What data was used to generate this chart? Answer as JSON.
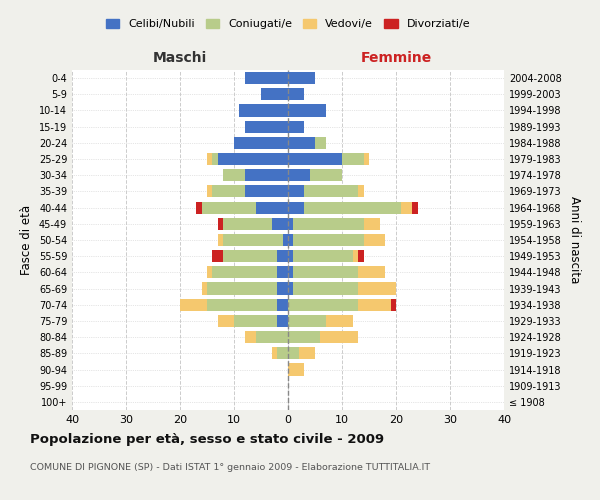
{
  "age_groups": [
    "100+",
    "95-99",
    "90-94",
    "85-89",
    "80-84",
    "75-79",
    "70-74",
    "65-69",
    "60-64",
    "55-59",
    "50-54",
    "45-49",
    "40-44",
    "35-39",
    "30-34",
    "25-29",
    "20-24",
    "15-19",
    "10-14",
    "5-9",
    "0-4"
  ],
  "birth_years": [
    "≤ 1908",
    "1909-1913",
    "1914-1918",
    "1919-1923",
    "1924-1928",
    "1929-1933",
    "1934-1938",
    "1939-1943",
    "1944-1948",
    "1949-1953",
    "1954-1958",
    "1959-1963",
    "1964-1968",
    "1969-1973",
    "1974-1978",
    "1979-1983",
    "1984-1988",
    "1989-1993",
    "1994-1998",
    "1999-2003",
    "2004-2008"
  ],
  "maschi": {
    "celibi": [
      0,
      0,
      0,
      0,
      0,
      2,
      2,
      2,
      2,
      2,
      1,
      3,
      6,
      8,
      8,
      13,
      10,
      8,
      9,
      5,
      8
    ],
    "coniugati": [
      0,
      0,
      0,
      2,
      6,
      8,
      13,
      13,
      12,
      10,
      11,
      9,
      10,
      6,
      4,
      1,
      0,
      0,
      0,
      0,
      0
    ],
    "vedovi": [
      0,
      0,
      0,
      1,
      2,
      3,
      5,
      1,
      1,
      0,
      1,
      0,
      0,
      1,
      0,
      1,
      0,
      0,
      0,
      0,
      0
    ],
    "divorziati": [
      0,
      0,
      0,
      0,
      0,
      0,
      0,
      0,
      0,
      2,
      0,
      1,
      1,
      0,
      0,
      0,
      0,
      0,
      0,
      0,
      0
    ]
  },
  "femmine": {
    "nubili": [
      0,
      0,
      0,
      0,
      0,
      0,
      0,
      1,
      1,
      1,
      1,
      1,
      3,
      3,
      4,
      10,
      5,
      3,
      7,
      3,
      5
    ],
    "coniugate": [
      0,
      0,
      0,
      2,
      6,
      7,
      13,
      12,
      12,
      11,
      13,
      13,
      18,
      10,
      6,
      4,
      2,
      0,
      0,
      0,
      0
    ],
    "vedove": [
      0,
      0,
      3,
      3,
      7,
      5,
      6,
      7,
      5,
      1,
      4,
      3,
      2,
      1,
      0,
      1,
      0,
      0,
      0,
      0,
      0
    ],
    "divorziate": [
      0,
      0,
      0,
      0,
      0,
      0,
      1,
      0,
      0,
      1,
      0,
      0,
      1,
      0,
      0,
      0,
      0,
      0,
      0,
      0,
      0
    ]
  },
  "colors": {
    "celibi_nubili": "#4472C4",
    "coniugati": "#B8CC8A",
    "vedovi": "#F5C86E",
    "divorziati": "#CC2222"
  },
  "title": "Popolazione per età, sesso e stato civile - 2009",
  "subtitle": "COMUNE DI PIGNONE (SP) - Dati ISTAT 1° gennaio 2009 - Elaborazione TUTTITALIA.IT",
  "xlabel_left": "Maschi",
  "xlabel_right": "Femmine",
  "ylabel_left": "Fasce di età",
  "ylabel_right": "Anni di nascita",
  "xlim": 40,
  "bg_color": "#f0f0eb",
  "plot_bg": "#ffffff",
  "legend_labels": [
    "Celibi/Nubili",
    "Coniugati/e",
    "Vedovi/e",
    "Divorziati/e"
  ]
}
